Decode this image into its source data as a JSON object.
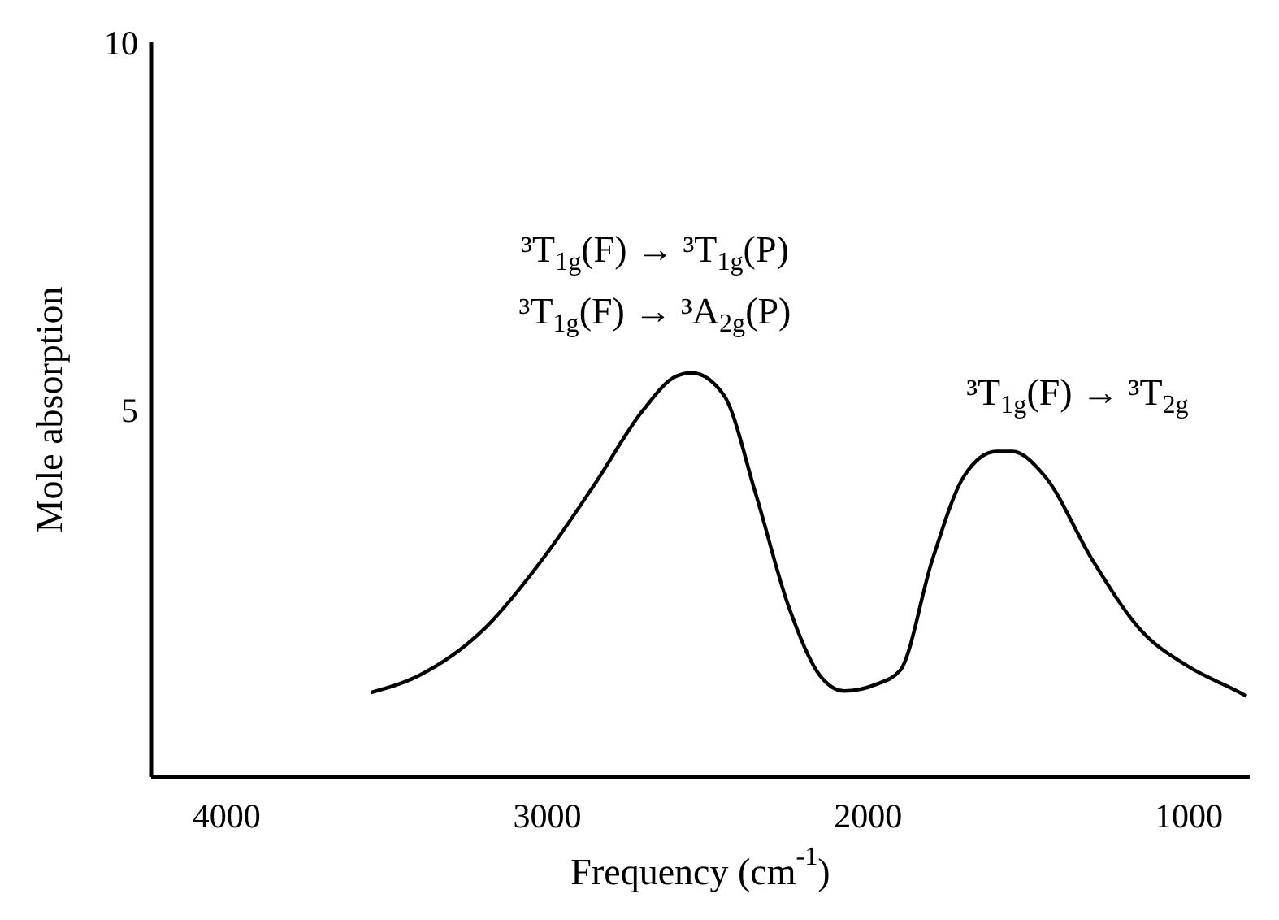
{
  "chart_data": {
    "type": "line",
    "xlabel": "Frequency (cm$^{-1}$)",
    "ylabel": "Mole absorption",
    "xlim": [
      4235,
      810
    ],
    "ylim": [
      0,
      10
    ],
    "xticks": [
      4000,
      3000,
      2000,
      1000
    ],
    "yticks": [
      5,
      10
    ],
    "grid": false,
    "legend": false,
    "marker": "none",
    "line_style": "solid",
    "series": [
      {
        "color": "#000000",
        "x": [
          3550,
          3400,
          3200,
          3000,
          2850,
          2700,
          2600,
          2550,
          2450,
          2350,
          2250,
          2150,
          2075,
          1975,
          1900,
          1800,
          1700,
          1600,
          1550,
          1450,
          1300,
          1150,
          1000,
          850,
          820
        ],
        "values": [
          1.15,
          1.38,
          2.0,
          3.05,
          4.0,
          5.0,
          5.45,
          5.5,
          5.2,
          3.85,
          2.35,
          1.38,
          1.17,
          1.26,
          1.45,
          2.95,
          4.1,
          4.43,
          4.43,
          4.1,
          2.95,
          2.0,
          1.5,
          1.17,
          1.1
        ]
      }
    ],
    "annotations": [
      "³T$_{1g}$(F) → ³T$_{1g}$(P)",
      "³T$_{1g}$(F) → ³A$_{2g}$(P)",
      "³T$_{1g}$(F) → ³T$_{2g}$"
    ]
  }
}
